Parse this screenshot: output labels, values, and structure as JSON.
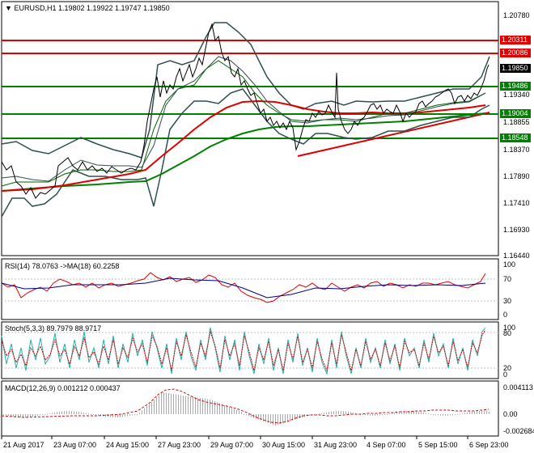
{
  "symbol_header": {
    "arrow": "▼",
    "symbol": "EURUSD,H1",
    "ohlc": "1.19802 1.19922 1.19747 1.19850"
  },
  "main_axis": [
    "1.20780",
    "1.19340",
    "1.18855",
    "1.18370",
    "1.17890",
    "1.17410",
    "1.16930",
    "1.16440"
  ],
  "levels": {
    "red": [
      "1.20311",
      "1.20086"
    ],
    "green": [
      "1.19486",
      "1.19004",
      "1.18548"
    ],
    "current": "1.19850"
  },
  "rsi": {
    "label": "RSI(14) 78.0763 ->MA(18) 60.2258",
    "axis": [
      "100",
      "70",
      "30",
      "0"
    ]
  },
  "stoch": {
    "label": "Stoch(5,3,3) 89.7979 88.9717",
    "axis": [
      "100",
      "80",
      "20",
      "0"
    ]
  },
  "macd": {
    "label": "MACD(12,26,9) 0.001212 0.000437",
    "axis": [
      "0.004113",
      "0.00",
      "-0.002684"
    ]
  },
  "time_axis": [
    "21 Aug 2017",
    "23 Aug 07:00",
    "24 Aug 15:00",
    "27 Aug 23:00",
    "29 Aug 07:00",
    "30 Aug 15:00",
    "31 Aug 23:00",
    "4 Sep 07:00",
    "5 Sep 15:00",
    "6 Sep 23:00"
  ],
  "colors": {
    "resistance": "#e00000",
    "support": "#008000",
    "price": "#000000",
    "bands": "#2f4f4f",
    "rsi": "#e00000",
    "ma": "#000080",
    "stoch_main": "#20b2aa",
    "stoch_signal": "#e00000",
    "macd_hist": "#a9a9a9",
    "macd_signal": "#e00000"
  }
}
